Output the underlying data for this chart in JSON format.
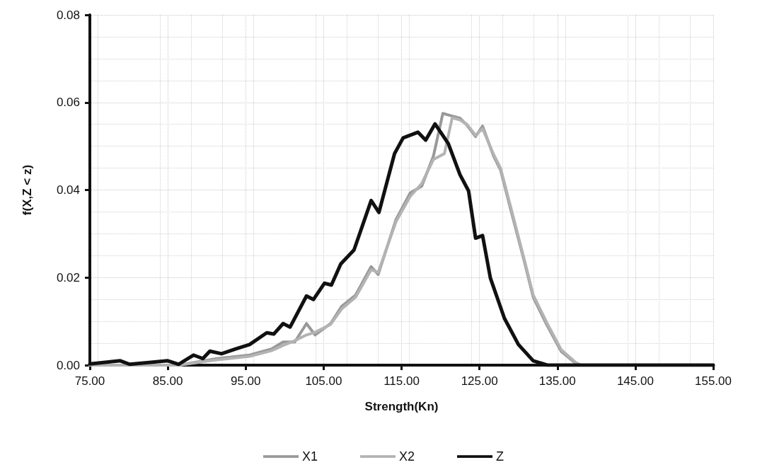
{
  "chart_data": {
    "type": "line",
    "xlabel": "Strength(Kn)",
    "ylabel": "f(X,Z < z)",
    "xlim": [
      75,
      155
    ],
    "xticks": [
      {
        "value": 75,
        "label": "75.00"
      },
      {
        "value": 85,
        "label": "85.00"
      },
      {
        "value": 95,
        "label": "95.00"
      },
      {
        "value": 105,
        "label": "105.00"
      },
      {
        "value": 115,
        "label": "115.00"
      },
      {
        "value": 125,
        "label": "125.00"
      },
      {
        "value": 135,
        "label": "135.00"
      },
      {
        "value": 145,
        "label": "145.00"
      },
      {
        "value": 155,
        "label": "155.00"
      }
    ],
    "ylim": [
      0,
      0.08
    ],
    "yticks": [
      {
        "value": 0,
        "label": "0.00"
      },
      {
        "value": 0.02,
        "label": "0.02"
      },
      {
        "value": 0.04,
        "label": "0.04"
      },
      {
        "value": 0.06,
        "label": "0.06"
      },
      {
        "value": 0.08,
        "label": "0.08"
      }
    ],
    "grid": true,
    "legend": "bottom",
    "marker": "none",
    "line_style": "solid",
    "series": [
      {
        "name": "X1",
        "color": "#999999",
        "x": [
          75,
          86.5,
          88,
          91.3,
          95.5,
          98.3,
          99.8,
          101.3,
          102.8,
          103.9,
          105.9,
          107.3,
          109.1,
          111.1,
          112,
          114.3,
          116.1,
          117.6,
          119.1,
          120.3,
          121.3,
          122.5,
          123.4,
          124.5,
          125.4,
          126.8,
          127.7,
          129.1,
          130.7,
          131.9,
          133.7,
          135.5,
          137.3,
          138,
          155
        ],
        "values": [
          0,
          0,
          0.0005,
          0.0015,
          0.0023,
          0.0037,
          0.0053,
          0.0053,
          0.0095,
          0.0069,
          0.0095,
          0.0134,
          0.016,
          0.0225,
          0.0207,
          0.0333,
          0.0393,
          0.0409,
          0.0478,
          0.0575,
          0.057,
          0.0564,
          0.0548,
          0.0522,
          0.0546,
          0.0478,
          0.0446,
          0.0349,
          0.0241,
          0.0155,
          0.009,
          0.0031,
          0.0005,
          0,
          0
        ]
      },
      {
        "name": "X2",
        "color": "#b3b3b3",
        "x": [
          75,
          86.5,
          88,
          91.3,
          95.5,
          98.3,
          99.8,
          101.3,
          102.8,
          103.9,
          105.9,
          107.3,
          109.1,
          111.1,
          112,
          114.3,
          116.1,
          117.6,
          119.1,
          120.5,
          121.5,
          122.5,
          123.4,
          124.5,
          125.4,
          126.8,
          127.7,
          129.1,
          130.7,
          131.9,
          133.7,
          135.5,
          137.3,
          138,
          155
        ],
        "values": [
          0,
          0,
          0.0004,
          0.0012,
          0.002,
          0.0033,
          0.0045,
          0.0056,
          0.0069,
          0.0075,
          0.0093,
          0.0128,
          0.0155,
          0.0218,
          0.0212,
          0.0328,
          0.0385,
          0.0415,
          0.047,
          0.0483,
          0.0565,
          0.056,
          0.055,
          0.0525,
          0.054,
          0.0482,
          0.045,
          0.0355,
          0.0245,
          0.016,
          0.0095,
          0.0035,
          0.0007,
          0,
          0
        ]
      },
      {
        "name": "Z",
        "color": "#111111",
        "x": [
          75,
          78.9,
          80.1,
          85,
          86.4,
          88.3,
          89.5,
          90.4,
          91.9,
          93.7,
          95.5,
          97.7,
          98.6,
          99.8,
          100.7,
          102.8,
          103.7,
          105.1,
          106,
          107.2,
          108.9,
          111.1,
          112.1,
          114.1,
          115.2,
          117.1,
          118.1,
          119.3,
          121,
          122.5,
          123.6,
          124.5,
          125.4,
          126.4,
          128.2,
          130,
          131.9,
          133.7,
          155
        ],
        "values": [
          0.0003,
          0.001,
          0.0002,
          0.001,
          0.0002,
          0.0023,
          0.0015,
          0.0032,
          0.0026,
          0.0037,
          0.0047,
          0.0074,
          0.0071,
          0.0095,
          0.0087,
          0.0158,
          0.015,
          0.0187,
          0.0183,
          0.0231,
          0.0263,
          0.0376,
          0.0349,
          0.0483,
          0.0519,
          0.0532,
          0.0514,
          0.0551,
          0.0506,
          0.0435,
          0.0398,
          0.029,
          0.0296,
          0.0199,
          0.0107,
          0.0047,
          0.001,
          0,
          0
        ]
      }
    ]
  }
}
